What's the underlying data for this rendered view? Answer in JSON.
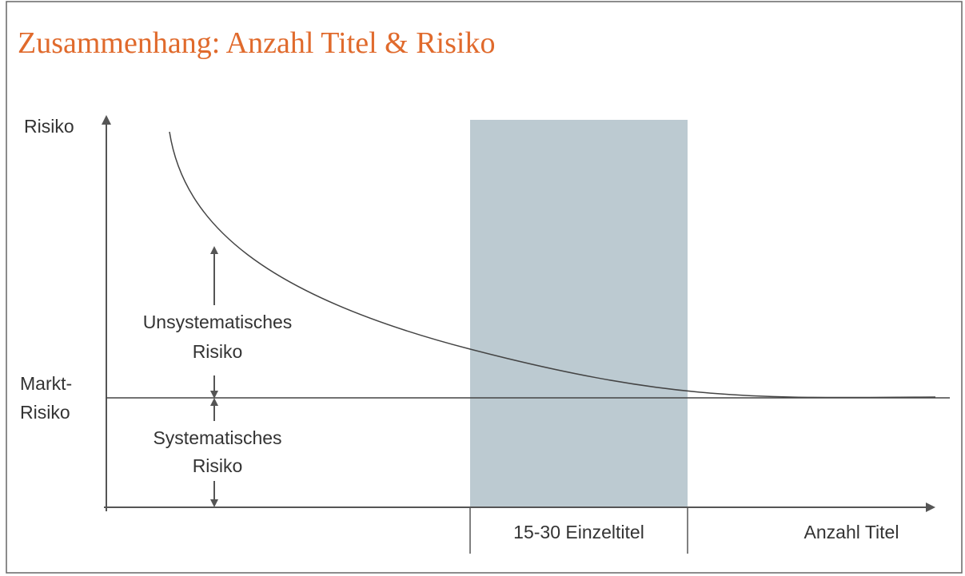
{
  "title": "Zusammenhang: Anzahl Titel & Risiko",
  "y_axis_label": "Risiko",
  "x_axis_label": "Anzahl Titel",
  "market_risk_label": {
    "line1": "Markt-",
    "line2": "Risiko"
  },
  "unsystematic_label": {
    "line1": "Unsystematisches",
    "line2": "Risiko"
  },
  "systematic_label": {
    "line1": "Systematisches",
    "line2": "Risiko"
  },
  "range_label": "15-30 Einzeltitel"
}
